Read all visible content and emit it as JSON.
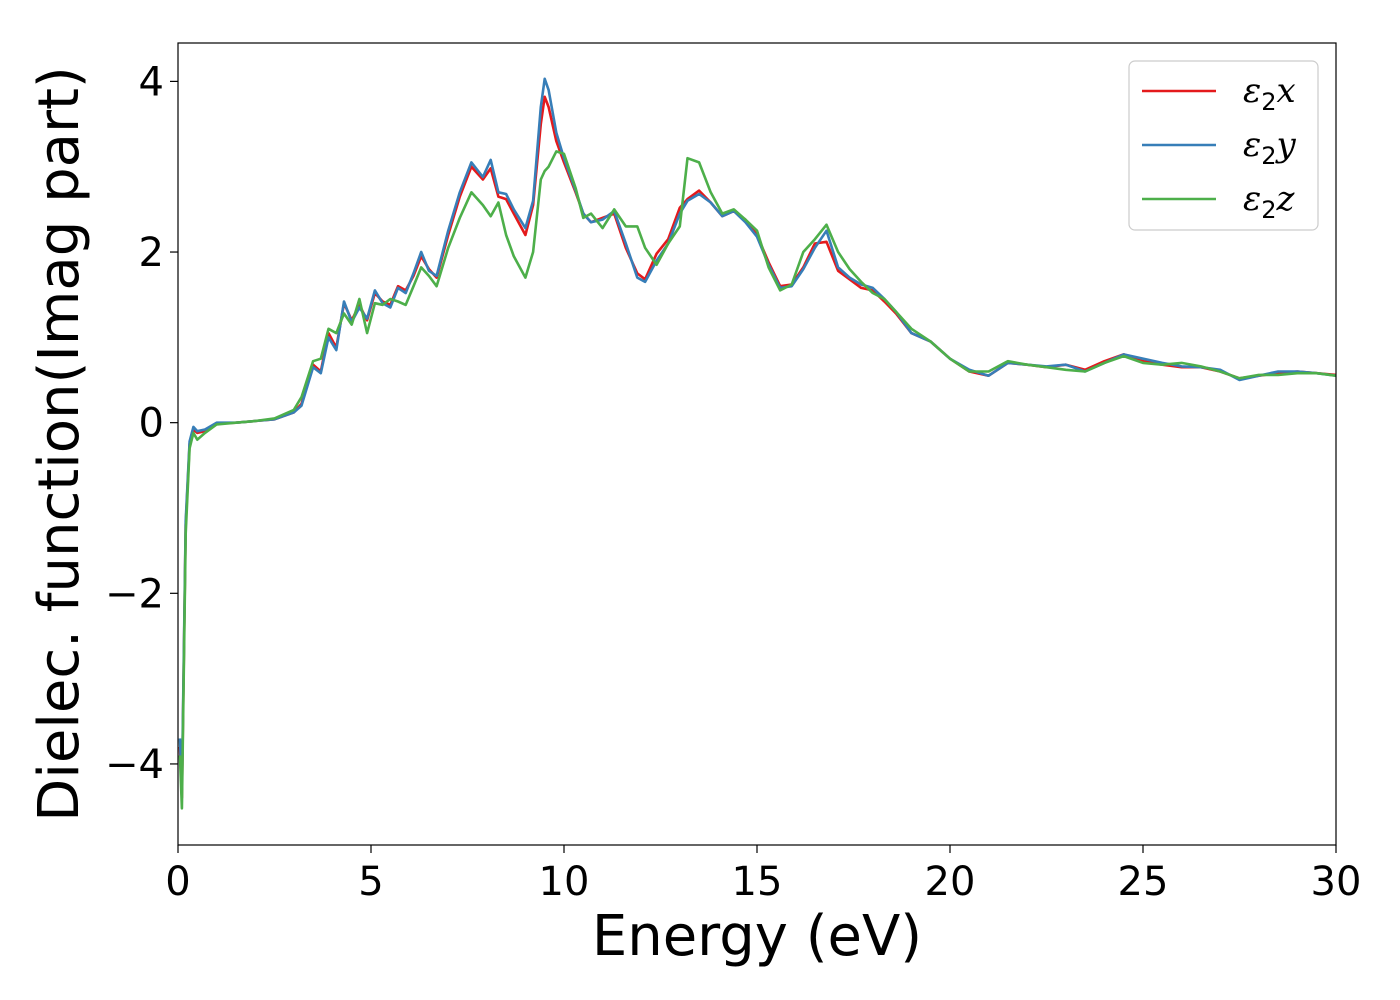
{
  "chart_data": {
    "type": "line",
    "xlabel": "Energy (eV)",
    "ylabel": "Dielec. function(Imag part)",
    "xlim": [
      0,
      30
    ],
    "ylim": [
      -4.95,
      4.45
    ],
    "xticks": [
      0,
      5,
      10,
      15,
      20,
      25,
      30
    ],
    "yticks": [
      -4,
      -2,
      0,
      2,
      4
    ],
    "xtick_labels": [
      "0",
      "5",
      "10",
      "15",
      "20",
      "25",
      "30"
    ],
    "ytick_labels": [
      "−4",
      "−2",
      "0",
      "2",
      "4"
    ],
    "grid": false,
    "legend_position": "top-right",
    "x": [
      0.05,
      0.1,
      0.2,
      0.3,
      0.4,
      0.5,
      0.7,
      1.0,
      1.5,
      2.0,
      2.5,
      3.0,
      3.2,
      3.5,
      3.7,
      3.9,
      4.1,
      4.3,
      4.5,
      4.7,
      4.9,
      5.1,
      5.3,
      5.5,
      5.7,
      5.9,
      6.1,
      6.3,
      6.5,
      6.7,
      7.0,
      7.3,
      7.6,
      7.9,
      8.1,
      8.3,
      8.5,
      8.7,
      9.0,
      9.2,
      9.4,
      9.5,
      9.6,
      9.8,
      10.0,
      10.3,
      10.5,
      10.7,
      11.0,
      11.3,
      11.6,
      11.9,
      12.1,
      12.4,
      12.7,
      13.0,
      13.2,
      13.5,
      13.8,
      14.1,
      14.4,
      14.7,
      15.0,
      15.3,
      15.6,
      15.9,
      16.2,
      16.5,
      16.8,
      17.1,
      17.4,
      17.7,
      18.0,
      18.3,
      18.6,
      19.0,
      19.5,
      20.0,
      20.5,
      21.0,
      21.5,
      22.0,
      22.5,
      23.0,
      23.5,
      24.0,
      24.5,
      25.0,
      25.5,
      26.0,
      26.5,
      27.0,
      27.5,
      28.0,
      28.5,
      29.0,
      29.5,
      30.0
    ],
    "series": [
      {
        "name": "ε2x",
        "color": "#e41a1c",
        "values": [
          -3.8,
          -4.4,
          -1.2,
          -0.25,
          -0.08,
          -0.12,
          -0.1,
          -0.01,
          0.0,
          0.02,
          0.04,
          0.12,
          0.22,
          0.68,
          0.6,
          1.05,
          0.88,
          1.4,
          1.2,
          1.38,
          1.2,
          1.52,
          1.42,
          1.38,
          1.6,
          1.55,
          1.72,
          1.95,
          1.8,
          1.7,
          2.2,
          2.65,
          3.0,
          2.85,
          2.98,
          2.65,
          2.62,
          2.45,
          2.2,
          2.55,
          3.5,
          3.82,
          3.7,
          3.3,
          3.05,
          2.7,
          2.45,
          2.35,
          2.4,
          2.45,
          2.05,
          1.75,
          1.68,
          1.98,
          2.15,
          2.52,
          2.62,
          2.72,
          2.58,
          2.42,
          2.48,
          2.38,
          2.2,
          1.88,
          1.6,
          1.62,
          1.82,
          2.1,
          2.12,
          1.78,
          1.68,
          1.58,
          1.55,
          1.42,
          1.28,
          1.05,
          0.95,
          0.75,
          0.6,
          0.55,
          0.7,
          0.68,
          0.65,
          0.68,
          0.62,
          0.72,
          0.8,
          0.72,
          0.68,
          0.65,
          0.65,
          0.6,
          0.52,
          0.55,
          0.58,
          0.6,
          0.58,
          0.56
        ]
      },
      {
        "name": "ε2y",
        "color": "#377eb8",
        "values": [
          -3.7,
          -4.3,
          -1.15,
          -0.22,
          -0.05,
          -0.1,
          -0.08,
          0.0,
          0.0,
          0.02,
          0.04,
          0.12,
          0.2,
          0.65,
          0.58,
          1.0,
          0.85,
          1.42,
          1.18,
          1.35,
          1.22,
          1.55,
          1.4,
          1.35,
          1.58,
          1.52,
          1.75,
          2.0,
          1.78,
          1.72,
          2.25,
          2.7,
          3.05,
          2.88,
          3.08,
          2.7,
          2.68,
          2.5,
          2.28,
          2.6,
          3.7,
          4.03,
          3.9,
          3.4,
          3.1,
          2.72,
          2.45,
          2.35,
          2.38,
          2.48,
          2.1,
          1.7,
          1.65,
          1.9,
          2.1,
          2.45,
          2.6,
          2.68,
          2.58,
          2.42,
          2.48,
          2.35,
          2.18,
          1.85,
          1.58,
          1.6,
          1.8,
          2.05,
          2.25,
          1.82,
          1.7,
          1.62,
          1.58,
          1.45,
          1.3,
          1.05,
          0.95,
          0.75,
          0.62,
          0.55,
          0.7,
          0.68,
          0.66,
          0.68,
          0.6,
          0.7,
          0.8,
          0.75,
          0.7,
          0.66,
          0.65,
          0.62,
          0.5,
          0.55,
          0.6,
          0.6,
          0.58,
          0.55
        ]
      },
      {
        "name": "ε2z",
        "color": "#4daf4a",
        "values": [
          -3.9,
          -4.52,
          -1.3,
          -0.3,
          -0.12,
          -0.2,
          -0.12,
          -0.02,
          0.0,
          0.02,
          0.05,
          0.15,
          0.3,
          0.72,
          0.75,
          1.1,
          1.05,
          1.28,
          1.15,
          1.45,
          1.05,
          1.4,
          1.38,
          1.45,
          1.42,
          1.38,
          1.6,
          1.82,
          1.72,
          1.6,
          2.05,
          2.4,
          2.7,
          2.55,
          2.42,
          2.58,
          2.2,
          1.95,
          1.7,
          2.0,
          2.85,
          2.95,
          3.0,
          3.18,
          3.15,
          2.75,
          2.4,
          2.45,
          2.28,
          2.5,
          2.3,
          2.3,
          2.05,
          1.85,
          2.1,
          2.3,
          3.1,
          3.05,
          2.7,
          2.45,
          2.5,
          2.38,
          2.25,
          1.82,
          1.55,
          1.62,
          2.0,
          2.15,
          2.32,
          2.0,
          1.8,
          1.65,
          1.52,
          1.45,
          1.3,
          1.1,
          0.95,
          0.75,
          0.6,
          0.6,
          0.72,
          0.68,
          0.65,
          0.62,
          0.6,
          0.7,
          0.78,
          0.7,
          0.68,
          0.7,
          0.66,
          0.6,
          0.52,
          0.56,
          0.56,
          0.58,
          0.58,
          0.55
        ]
      }
    ]
  },
  "legend": {
    "entries": [
      {
        "symbol": "ε",
        "sub": "2",
        "axis": "x",
        "color": "#e41a1c"
      },
      {
        "symbol": "ε",
        "sub": "2",
        "axis": "y",
        "color": "#377eb8"
      },
      {
        "symbol": "ε",
        "sub": "2",
        "axis": "z",
        "color": "#4daf4a"
      }
    ]
  }
}
